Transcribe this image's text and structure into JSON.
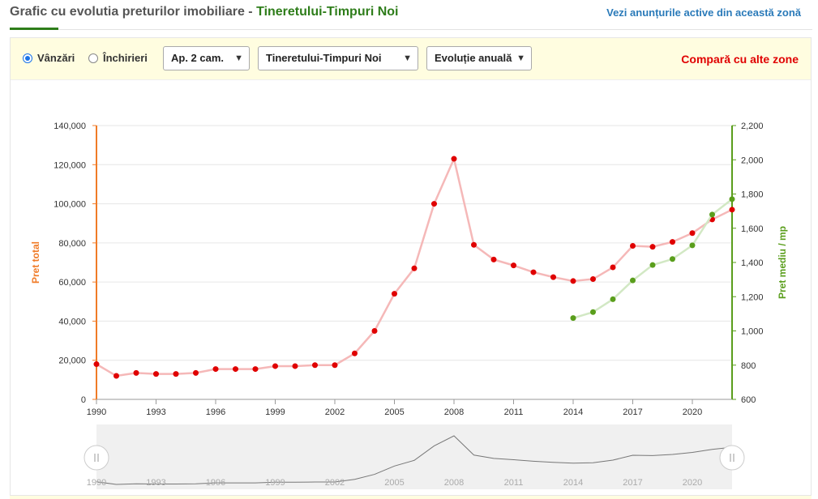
{
  "header": {
    "title_prefix": "Grafic cu evolutia preturilor imobiliare - ",
    "title_zone": "Tineretului-Timpuri Noi",
    "ads_link": "Vezi anunțurile active din această zonă"
  },
  "controls": {
    "radio_sales": "Vânzări",
    "radio_rent": "Închirieri",
    "selected_radio": "sales",
    "select_rooms": "Ap. 2 cam.",
    "select_zone": "Tineretului-Timpuri Noi",
    "select_evolution": "Evoluție anuală",
    "compare_link": "Compară cu alte zone"
  },
  "colors": {
    "total_line": "#f5b8b8",
    "total_marker": "#e00000",
    "sqm_line": "#d2e8c4",
    "sqm_marker": "#5a9e1c",
    "left_axis": "#f07b27",
    "right_axis": "#5a9e1c"
  },
  "chart_data": {
    "type": "line",
    "xlabel": "",
    "ylabel": "Pret total",
    "y2label": "Pret mediu / mp",
    "xlim": [
      1990,
      2022
    ],
    "ylim": [
      0,
      140000
    ],
    "y2lim": [
      600,
      2200
    ],
    "x_ticks": [
      1990,
      1993,
      1996,
      1999,
      2002,
      2005,
      2008,
      2011,
      2014,
      2017,
      2020
    ],
    "y_ticks": [
      0,
      20000,
      40000,
      60000,
      80000,
      100000,
      120000,
      140000
    ],
    "y2_ticks": [
      600,
      800,
      1000,
      1200,
      1400,
      1600,
      1800,
      2000,
      2200
    ],
    "grid": true,
    "series": [
      {
        "axis": "left",
        "x": [
          1990,
          1991,
          1992,
          1993,
          1994,
          1995,
          1996,
          1997,
          1998,
          1999,
          2000,
          2001,
          2002,
          2003,
          2004,
          2005,
          2006,
          2007,
          2008,
          2009,
          2010,
          2011,
          2012,
          2013,
          2014,
          2015,
          2016,
          2017,
          2018,
          2019,
          2020,
          2021,
          2022
        ],
        "values": [
          18000,
          12000,
          13500,
          13000,
          13000,
          13500,
          15500,
          15500,
          15500,
          17000,
          17000,
          17500,
          17500,
          23500,
          35000,
          54000,
          67000,
          100000,
          123000,
          79000,
          71500,
          68500,
          65000,
          62500,
          60500,
          61500,
          67500,
          78500,
          78000,
          80500,
          85000,
          92000,
          97000
        ]
      },
      {
        "axis": "right",
        "x": [
          2014,
          2015,
          2016,
          2017,
          2018,
          2019,
          2020,
          2021,
          2022
        ],
        "values": [
          1075,
          1110,
          1185,
          1295,
          1385,
          1420,
          1500,
          1680,
          1770
        ]
      }
    ]
  }
}
